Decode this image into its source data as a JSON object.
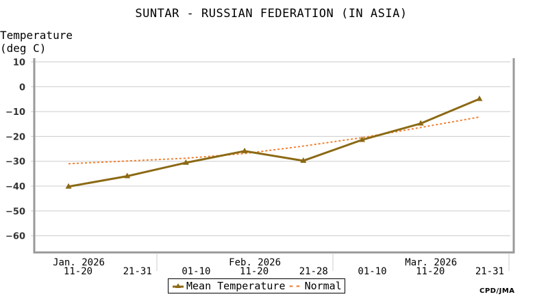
{
  "header": {
    "title": "SUNTAR - RUSSIAN FEDERATION (IN ASIA)",
    "ylabel": "Temperature\n(deg C)"
  },
  "legend": {
    "mean_label": "Mean Temperature",
    "normal_symbol": "--",
    "normal_label": "Normal"
  },
  "credit": "CPD/JMA",
  "colors": {
    "mean": "#8b6914",
    "normal": "#f08030",
    "grid": "#cccccc",
    "axis": "#999999"
  },
  "chart_data": {
    "type": "line",
    "title": "SUNTAR - RUSSIAN FEDERATION (IN ASIA)",
    "xlabel": "",
    "ylabel": "Temperature (deg C)",
    "ylim": [
      -67,
      11
    ],
    "yticks": [
      10,
      0,
      -10,
      -20,
      -30,
      -40,
      -50,
      -60
    ],
    "grid": true,
    "legend_position": "bottom",
    "categories": [
      "11-20",
      "21-31",
      "01-10",
      "11-20",
      "21-28",
      "01-10",
      "11-20",
      "21-31"
    ],
    "month_labels": [
      {
        "label": "Jan. 2026",
        "index": 0
      },
      {
        "label": "Feb. 2026",
        "index": 3
      },
      {
        "label": "Mar. 2026",
        "index": 6
      }
    ],
    "series": [
      {
        "name": "Mean Temperature",
        "style": "solid-triangle-markers",
        "values": [
          -40.2,
          -36.0,
          -30.6,
          -25.9,
          -29.8,
          -21.4,
          -14.8,
          -4.9
        ]
      },
      {
        "name": "Normal",
        "style": "dashed",
        "values": [
          -31.0,
          -29.9,
          -28.8,
          -26.9,
          -23.9,
          -20.5,
          -16.4,
          -12.2
        ]
      }
    ]
  }
}
